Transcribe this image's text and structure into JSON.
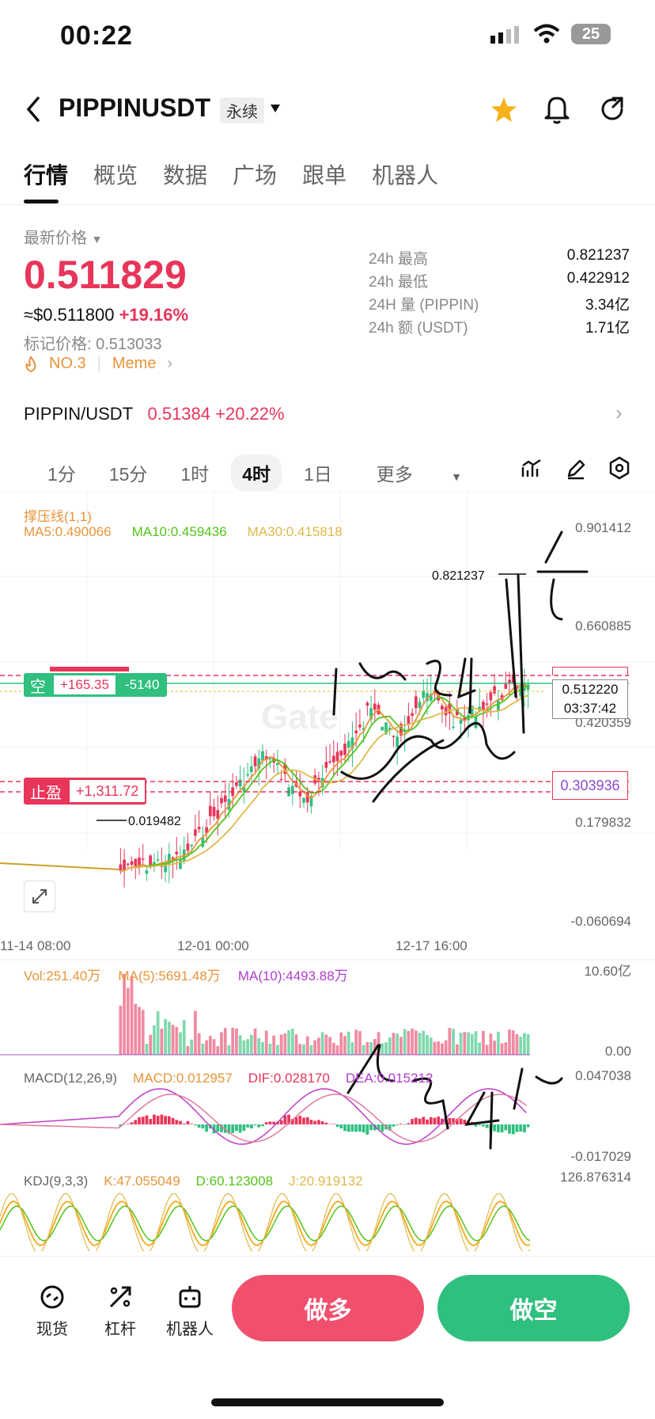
{
  "status_bar": {
    "time": "00:22",
    "battery": "25"
  },
  "header": {
    "title": "PIPPINUSDT",
    "contract_type": "永续"
  },
  "tabs": [
    {
      "label": "行情"
    },
    {
      "label": "概览"
    },
    {
      "label": "数据"
    },
    {
      "label": "广场"
    },
    {
      "label": "跟单"
    },
    {
      "label": "机器人"
    }
  ],
  "ticker": {
    "latest_label": "最新价格",
    "price": "0.511829",
    "usd_price": "≈$0.511800",
    "change": "+19.16%",
    "mark_price": "标记价格: 0.513033",
    "rank_tag": "NO.3",
    "category_tag": "Meme"
  },
  "stats": [
    {
      "key": "24h  最高",
      "value": "0.821237"
    },
    {
      "key": "24h  最低",
      "value": "0.422912"
    },
    {
      "key": "24H  量 (PIPPIN)",
      "value": "3.34亿"
    },
    {
      "key": "24h  额 (USDT)",
      "value": "1.71亿"
    }
  ],
  "spot": {
    "pair": "PIPPIN/USDT",
    "price": "0.51384",
    "change": "+20.22%"
  },
  "intervals": [
    "1分",
    "15分",
    "1时",
    "4时",
    "1日",
    "更多"
  ],
  "selected_interval": "4时",
  "chart": {
    "indicator_name": "撑压线(1,1)",
    "ma5": "MA5:0.490066",
    "ma10": "MA10:0.459436",
    "ma30": "MA30:0.415818",
    "price_axis": [
      "0.901412",
      "0.660885",
      "0.420359",
      "0.179832",
      "-0.060694"
    ],
    "high_label": "0.821237",
    "low_label": "0.019482",
    "current_price": "0.512220",
    "countdown": "03:37:42",
    "tp_price": "0.303936",
    "position_side": "空",
    "position_pnl": "+165.35",
    "position_size": "-5140",
    "tp_label": "止盈",
    "tp_pnl": "+1,311.72",
    "time_axis": [
      "11-14 08:00",
      "12-01 00:00",
      "12-17 16:00"
    ],
    "vol": "Vol:251.40万",
    "vol_ma5": "MA(5):5691.48万",
    "vol_ma10": "MA(10):4493.88万",
    "vol_axis": [
      "10.60亿",
      "0.00"
    ],
    "macd_name": "MACD(12,26,9)",
    "macd": "MACD:0.012957",
    "dif": "DIF:0.028170",
    "dea": "DEA:0.015212",
    "macd_axis": [
      "0.047038",
      "-0.017029"
    ],
    "kdj_name": "KDJ(9,3,3)",
    "k": "K:47.055049",
    "d": "D:60.123008",
    "j": "J:20.919132",
    "kdj_axis": [
      "126.876314"
    ]
  },
  "bottom_nav": [
    {
      "label": "现货"
    },
    {
      "label": "杠杆"
    },
    {
      "label": "机器人"
    }
  ],
  "actions": {
    "long": "做多",
    "short": "做空"
  }
}
